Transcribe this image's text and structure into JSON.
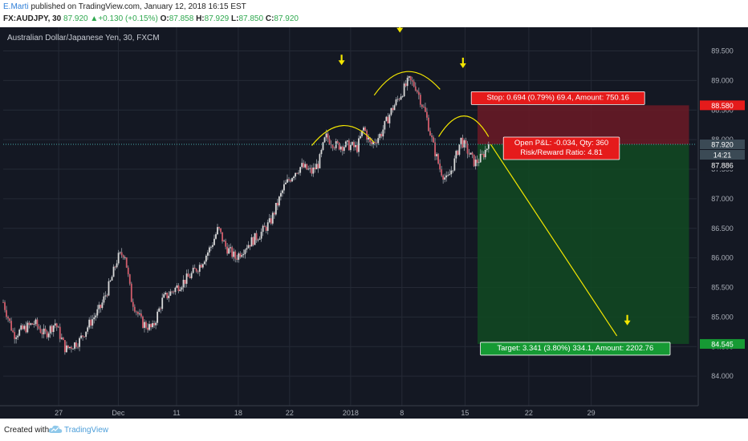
{
  "header": {
    "author": "E.Marti",
    "published": " published on TradingView.com, January 12, 2018 16:15 EST",
    "symbol_interval": "FX:AUDJPY, 30",
    "last": "87.920",
    "change_arrow": "▲",
    "change": "+0.130 (+0.15%)",
    "o_label": "O:",
    "o": "87.858",
    "h_label": "H:",
    "h": "87.929",
    "l_label": "L:",
    "l": "87.850",
    "c_label": "C:",
    "c": "87.920"
  },
  "footer": {
    "created_with": "Created with",
    "brand": "TradingView"
  },
  "chart_data": {
    "type": "candlestick",
    "title": "Australian Dollar/Japanese Yen, 30, FXCM",
    "ylim": [
      83.5,
      89.9
    ],
    "y_ticks": [
      84.0,
      84.5,
      85.0,
      85.5,
      86.0,
      86.5,
      87.0,
      87.5,
      88.0,
      88.5,
      89.0,
      89.5
    ],
    "y_tick_labels": [
      "84.000",
      "84.500",
      "85.000",
      "85.500",
      "86.000",
      "86.500",
      "87.000",
      "87.500",
      "88.000",
      "88.500",
      "89.000",
      "89.500"
    ],
    "x_ticks": [
      {
        "label": "27",
        "t": 0.08
      },
      {
        "label": "Dec",
        "t": 0.166
      },
      {
        "label": "11",
        "t": 0.25
      },
      {
        "label": "18",
        "t": 0.339
      },
      {
        "label": "22",
        "t": 0.413
      },
      {
        "label": "2018",
        "t": 0.501
      },
      {
        "label": "8",
        "t": 0.575
      },
      {
        "label": "15",
        "t": 0.666
      },
      {
        "label": "22",
        "t": 0.758
      },
      {
        "label": "29",
        "t": 0.848
      }
    ],
    "price_path": [
      [
        0.0,
        85.25
      ],
      [
        0.015,
        84.7
      ],
      [
        0.03,
        84.8
      ],
      [
        0.045,
        84.9
      ],
      [
        0.06,
        84.7
      ],
      [
        0.075,
        84.9
      ],
      [
        0.09,
        84.45
      ],
      [
        0.11,
        84.6
      ],
      [
        0.125,
        84.9
      ],
      [
        0.14,
        85.15
      ],
      [
        0.155,
        85.6
      ],
      [
        0.165,
        86.0
      ],
      [
        0.175,
        86.1
      ],
      [
        0.185,
        85.3
      ],
      [
        0.2,
        84.9
      ],
      [
        0.215,
        84.8
      ],
      [
        0.23,
        85.3
      ],
      [
        0.25,
        85.5
      ],
      [
        0.27,
        85.7
      ],
      [
        0.285,
        85.9
      ],
      [
        0.3,
        86.2
      ],
      [
        0.31,
        86.5
      ],
      [
        0.32,
        86.2
      ],
      [
        0.335,
        86.0
      ],
      [
        0.35,
        86.2
      ],
      [
        0.37,
        86.4
      ],
      [
        0.385,
        86.6
      ],
      [
        0.395,
        86.9
      ],
      [
        0.405,
        87.2
      ],
      [
        0.42,
        87.45
      ],
      [
        0.43,
        87.55
      ],
      [
        0.445,
        87.45
      ],
      [
        0.455,
        87.6
      ],
      [
        0.465,
        88.05
      ],
      [
        0.48,
        87.9
      ],
      [
        0.5,
        87.9
      ],
      [
        0.51,
        87.85
      ],
      [
        0.52,
        88.2
      ],
      [
        0.53,
        87.9
      ],
      [
        0.545,
        88.1
      ],
      [
        0.56,
        88.5
      ],
      [
        0.575,
        88.8
      ],
      [
        0.585,
        89.0
      ],
      [
        0.595,
        88.9
      ],
      [
        0.61,
        88.4
      ],
      [
        0.62,
        87.9
      ],
      [
        0.63,
        87.5
      ],
      [
        0.64,
        87.3
      ],
      [
        0.65,
        87.6
      ],
      [
        0.66,
        88.0
      ],
      [
        0.67,
        87.8
      ],
      [
        0.68,
        87.6
      ],
      [
        0.69,
        87.7
      ],
      [
        0.7,
        87.92
      ]
    ],
    "current_price": 87.92,
    "current_label": "87.920",
    "countdown_label": "14:21",
    "level_87886": "87.886",
    "stop_level": 88.58,
    "stop_label": "88.580",
    "target_level": 84.545,
    "target_label": "84.545",
    "stop_text": "Stop: 0.694 (0.79%) 69.4, Amount: 750.16",
    "pnl_text": "Open P&L: -0.034, Qty: 360",
    "rr_text": "Risk/Reward Ratio: 4.81",
    "target_text": "Target: 3.341 (3.80%) 334.1, Amount: 2202.76",
    "annotations": {
      "pattern": "head and shoulders",
      "projection_start": [
        0.703,
        87.92
      ],
      "projection_end": [
        0.885,
        84.68
      ]
    },
    "colors": {
      "background": "#141823",
      "grid": "#252a36",
      "up": "#d9d9d9",
      "down": "#d05c6a",
      "wick": "#9aa0a8",
      "stop_zone": "#6b1a26",
      "target_zone": "#114a22",
      "stop_badge": "#e51b1b",
      "target_badge": "#169a34",
      "current_badge": "#3b4a55",
      "annotation": "#f3e600",
      "axis_text": "#a8adb6",
      "current_line": "#47a9a8"
    }
  }
}
